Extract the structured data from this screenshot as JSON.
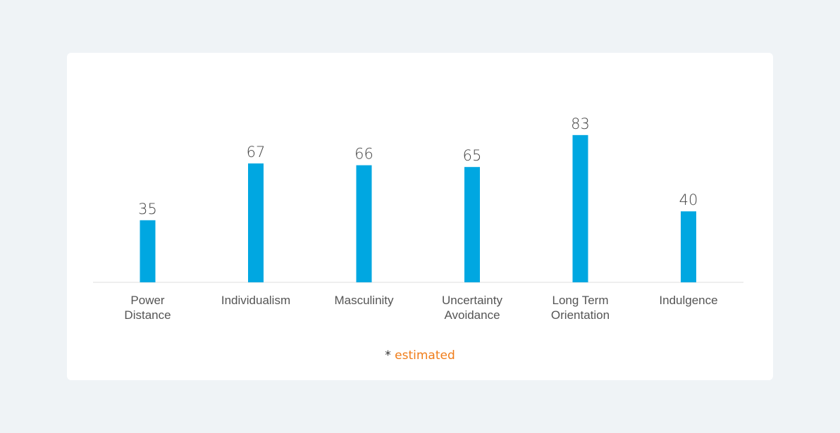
{
  "colors": {
    "background": "#eff3f6",
    "card": "#ffffff",
    "bar": "#00a7e1",
    "axis": "#dddddd",
    "footnote_accent": "#f07d1a"
  },
  "footnote": {
    "prefix": "* ",
    "text": "estimated"
  },
  "chart_data": {
    "type": "bar",
    "categories": [
      [
        "Power",
        "Distance"
      ],
      [
        "Individualism"
      ],
      [
        "Masculinity"
      ],
      [
        "Uncertainty",
        "Avoidance"
      ],
      [
        "Long Term",
        "Orientation"
      ],
      [
        "Indulgence"
      ]
    ],
    "values": [
      35,
      67,
      66,
      65,
      83,
      40
    ],
    "data_labels": true,
    "ylim": [
      0,
      100
    ],
    "grid": false,
    "legend": "none",
    "title": "",
    "xlabel": "",
    "ylabel": ""
  }
}
